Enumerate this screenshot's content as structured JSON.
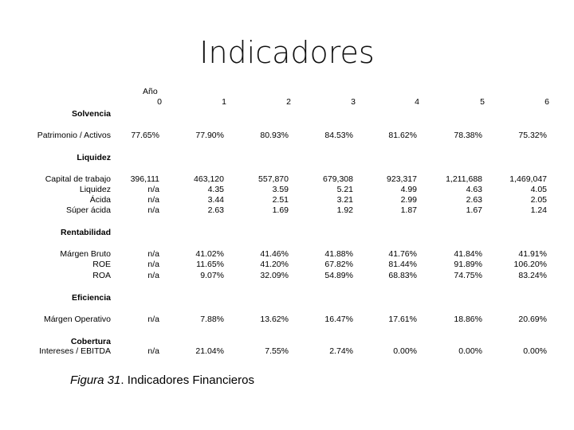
{
  "title": "Indicadores",
  "header": {
    "year_label": "Año",
    "years": [
      "0",
      "1",
      "2",
      "3",
      "4",
      "5",
      "6"
    ]
  },
  "sections": {
    "solvencia": "Solvencia",
    "liquidez": "Liquidez",
    "rentabilidad": "Rentabilidad",
    "eficiencia": "Eficiencia",
    "cobertura": "Cobertura"
  },
  "rows": {
    "patrimonio": {
      "label": "Patrimonio / Activos",
      "values": [
        "77.65%",
        "77.90%",
        "80.93%",
        "84.53%",
        "81.62%",
        "78.38%",
        "75.32%"
      ]
    },
    "capital": {
      "label": "Capital de trabajo",
      "values": [
        "396,111",
        "463,120",
        "557,870",
        "679,308",
        "923,317",
        "1,211,688",
        "1,469,047"
      ]
    },
    "liquidez": {
      "label": "Liquidez",
      "values": [
        "n/a",
        "4.35",
        "3.59",
        "5.21",
        "4.99",
        "4.63",
        "4.05"
      ]
    },
    "acida": {
      "label": "Ácida",
      "values": [
        "n/a",
        "3.44",
        "2.51",
        "3.21",
        "2.99",
        "2.63",
        "2.05"
      ]
    },
    "superacida": {
      "label": "Súper ácida",
      "values": [
        "n/a",
        "2.63",
        "1.69",
        "1.92",
        "1.87",
        "1.67",
        "1.24"
      ]
    },
    "margen_bruto": {
      "label": "Márgen Bruto",
      "values": [
        "n/a",
        "41.02%",
        "41.46%",
        "41.88%",
        "41.76%",
        "41.84%",
        "41.91%"
      ]
    },
    "roe": {
      "label": "ROE",
      "values": [
        "n/a",
        "11.65%",
        "41.20%",
        "67.82%",
        "81.44%",
        "91.89%",
        "106.20%"
      ]
    },
    "roa": {
      "label": "ROA",
      "values": [
        "n/a",
        "9.07%",
        "32.09%",
        "54.89%",
        "68.83%",
        "74.75%",
        "83.24%"
      ]
    },
    "margen_operativo": {
      "label": "Márgen Operativo",
      "values": [
        "n/a",
        "7.88%",
        "13.62%",
        "16.47%",
        "17.61%",
        "18.86%",
        "20.69%"
      ]
    },
    "intereses": {
      "label": "Intereses / EBITDA",
      "values": [
        "n/a",
        "21.04%",
        "7.55%",
        "2.74%",
        "0.00%",
        "0.00%",
        "0.00%"
      ]
    }
  },
  "caption": {
    "figure": "Figura 31",
    "text": ". Indicadores Financieros"
  }
}
